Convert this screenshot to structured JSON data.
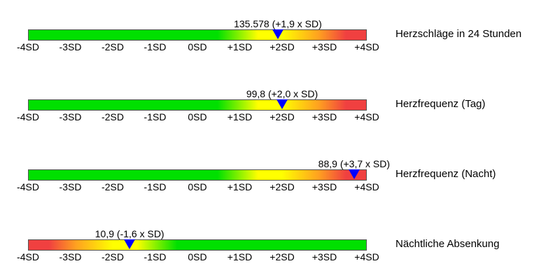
{
  "chart_data": [
    {
      "type": "bar",
      "title": "Herzschläge in 24 Stunden",
      "value_label": "135.578 (+1,9 x SD)",
      "value": 135578,
      "sd_position": 1.9,
      "xlim": [
        -4,
        4
      ],
      "ticks": [
        "-4SD",
        "-3SD",
        "-2SD",
        "-1SD",
        "0SD",
        "+1SD",
        "+2SD",
        "+3SD",
        "+4SD"
      ],
      "gradient": "green-to-red"
    },
    {
      "type": "bar",
      "title": "Herzfrequenz (Tag)",
      "value_label": "99,8 (+2,0 x SD)",
      "value": 99.8,
      "sd_position": 2.0,
      "xlim": [
        -4,
        4
      ],
      "ticks": [
        "-4SD",
        "-3SD",
        "-2SD",
        "-1SD",
        "0SD",
        "+1SD",
        "+2SD",
        "+3SD",
        "+4SD"
      ],
      "gradient": "green-to-red"
    },
    {
      "type": "bar",
      "title": "Herzfrequenz (Nacht)",
      "value_label": "88,9 (+3,7 x SD)",
      "value": 88.9,
      "sd_position": 3.7,
      "xlim": [
        -4,
        4
      ],
      "ticks": [
        "-4SD",
        "-3SD",
        "-2SD",
        "-1SD",
        "0SD",
        "+1SD",
        "+2SD",
        "+3SD",
        "+4SD"
      ],
      "gradient": "green-to-red"
    },
    {
      "type": "bar",
      "title": "Nächtliche Absenkung",
      "value_label": "10,9 (-1,6 x SD)",
      "value": 10.9,
      "sd_position": -1.6,
      "xlim": [
        -4,
        4
      ],
      "ticks": [
        "-4SD",
        "-3SD",
        "-2SD",
        "-1SD",
        "0SD",
        "+1SD",
        "+2SD",
        "+3SD",
        "+4SD"
      ],
      "gradient": "red-to-green"
    }
  ],
  "colors": {
    "green": "#00e000",
    "yellow": "#ffff00",
    "orange": "#ffa020",
    "red": "#f04040",
    "marker": "#0000ff"
  }
}
